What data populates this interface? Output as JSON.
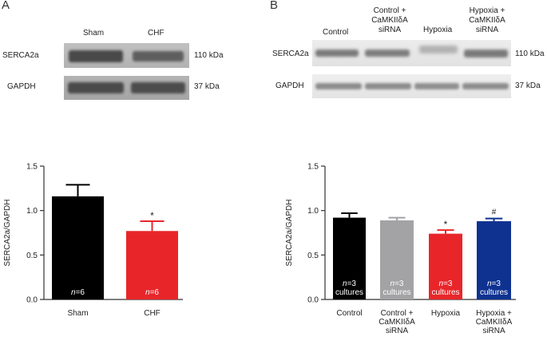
{
  "panels": [
    {
      "letter": "A",
      "blot": {
        "lanes": [
          "Sham",
          "CHF"
        ],
        "rows": [
          {
            "protein": "SERCA2a",
            "size": "110 kDa"
          },
          {
            "protein": "GAPDH",
            "size": "37 kDa"
          }
        ]
      }
    },
    {
      "letter": "B",
      "blot": {
        "lanes": [
          [
            "Control"
          ],
          [
            "Control +",
            "CaMKIIδA",
            "siRNA"
          ],
          [
            "Hypoxia"
          ],
          [
            "Hypoxia +",
            "CaMKIIδA",
            "siRNA"
          ]
        ],
        "rows": [
          {
            "protein": "SERCA2a",
            "size": "110 kDa"
          },
          {
            "protein": "GAPDH",
            "size": "37 kDa"
          }
        ]
      }
    }
  ],
  "chart_data": [
    {
      "type": "bar",
      "categories": [
        [
          "Sham"
        ],
        [
          "CHF"
        ]
      ],
      "values": [
        1.16,
        0.77
      ],
      "errors": [
        0.13,
        0.11
      ],
      "colors": [
        "#000000",
        "#e8262a"
      ],
      "bar_labels": [
        {
          "n": "n",
          "text": "=6"
        },
        {
          "n": "n",
          "text": "=6"
        }
      ],
      "significance": [
        "",
        "*"
      ],
      "ylabel": "SERCA2a/GAPDH",
      "ylim": [
        0,
        1.5
      ],
      "yticks": [
        "0.0",
        "0.5",
        "1.0",
        "1.5"
      ],
      "grid": false
    },
    {
      "type": "bar",
      "categories": [
        [
          "Control"
        ],
        [
          "Control +",
          "CaMKIIδA",
          "siRNA"
        ],
        [
          "Hypoxia"
        ],
        [
          "Hypoxia +",
          "CaMKIIδA",
          "siRNA"
        ]
      ],
      "values": [
        0.92,
        0.89,
        0.74,
        0.88
      ],
      "errors": [
        0.05,
        0.03,
        0.04,
        0.03
      ],
      "colors": [
        "#000000",
        "#a3a3a6",
        "#e8262a",
        "#0f3291"
      ],
      "bar_labels": [
        {
          "n": "n",
          "text": "=3",
          "sub": "cultures"
        },
        {
          "n": "n",
          "text": "=3",
          "sub": "cultures"
        },
        {
          "n": "n",
          "text": "=3",
          "sub": "cultures"
        },
        {
          "n": "n",
          "text": "=3",
          "sub": "cultures"
        }
      ],
      "significance": [
        "",
        "",
        "*",
        "#"
      ],
      "ylabel": "SERCA2a/GAPDH",
      "ylim": [
        0,
        1.5
      ],
      "yticks": [
        "0.0",
        "0.5",
        "1.0",
        "1.5"
      ],
      "grid": false
    }
  ]
}
